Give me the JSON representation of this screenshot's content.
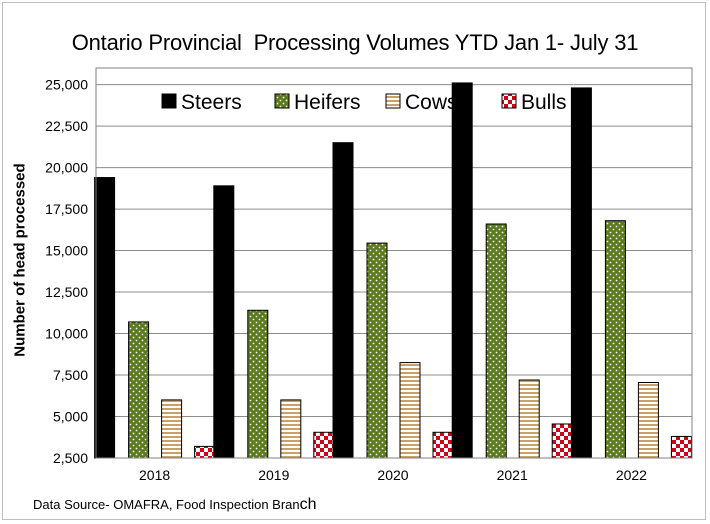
{
  "chart_data": {
    "type": "bar",
    "title": "Ontario Provincial  Processing Volumes YTD Jan 1- July 31",
    "ylabel": "Number of head processed",
    "xlabel": "",
    "categories": [
      "2018",
      "2019",
      "2020",
      "2021",
      "2022"
    ],
    "ylim": [
      2500,
      26000
    ],
    "yticks": [
      "2,500",
      "5,000",
      "7,500",
      "10,000",
      "12,500",
      "15,000",
      "17,500",
      "20,000",
      "22,500",
      "25,000"
    ],
    "ytick_values": [
      2500,
      5000,
      7500,
      10000,
      12500,
      15000,
      17500,
      20000,
      22500,
      25000
    ],
    "grid": true,
    "legend_position": "top",
    "series": [
      {
        "name": "Steers",
        "values": [
          19400,
          18900,
          21500,
          25100,
          24800
        ],
        "color": "#000000",
        "pattern": "solid"
      },
      {
        "name": "Heifers",
        "values": [
          10700,
          11400,
          15450,
          16600,
          16800
        ],
        "color": "#5a7a1e",
        "pattern": "dots"
      },
      {
        "name": "Cows",
        "values": [
          6000,
          6000,
          8250,
          7200,
          7050
        ],
        "color": "#d9b98a",
        "pattern": "horizontal-stripes"
      },
      {
        "name": "Bulls",
        "values": [
          3200,
          4050,
          4050,
          4550,
          3800
        ],
        "color": "#d0021b",
        "pattern": "checker"
      }
    ]
  },
  "source_text": "Data Source- OMAFRA, Food Inspection Bran",
  "source_tail": "ch"
}
